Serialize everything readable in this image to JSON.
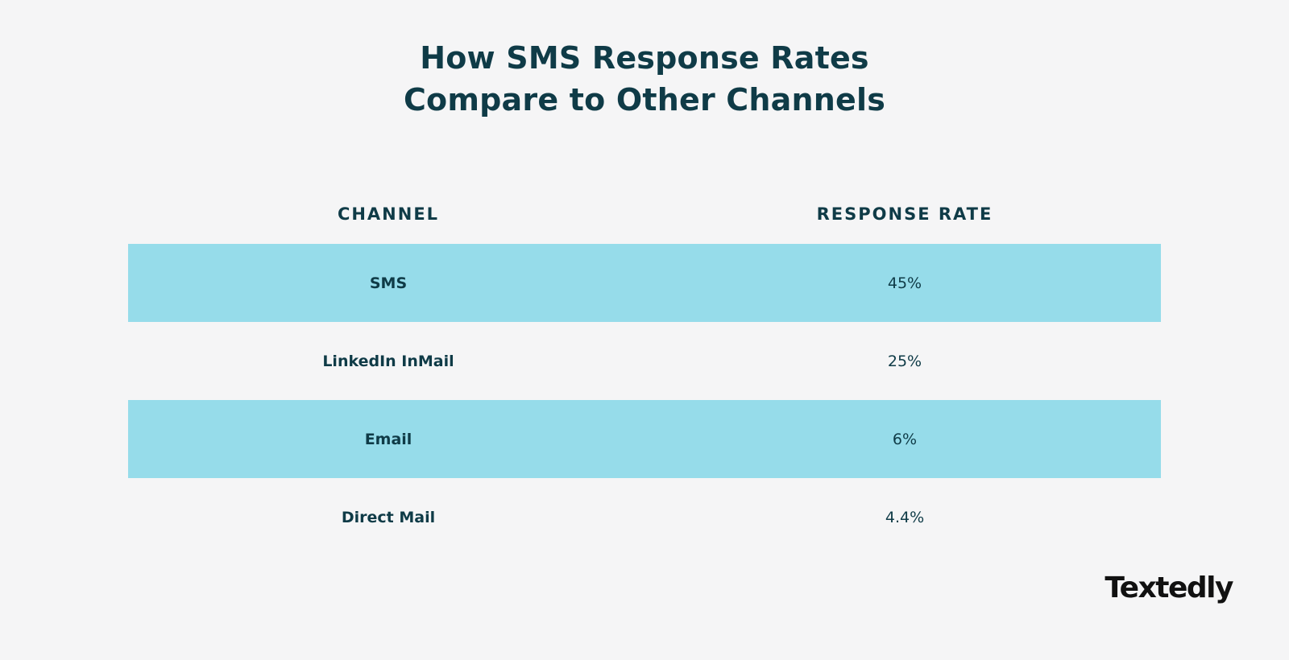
{
  "title": {
    "line1": "How SMS Response Rates",
    "line2": "Compare to Other Channels"
  },
  "logo": "Textedly",
  "colors": {
    "background": "#f5f5f6",
    "row_highlight": "#96dcea",
    "text": "#0f3b47"
  },
  "chart_data": {
    "type": "table",
    "title": "How SMS Response Rates Compare to Other Channels",
    "columns": [
      "CHANNEL",
      "RESPONSE RATE"
    ],
    "rows": [
      {
        "channel": "SMS",
        "rate": "45%",
        "value": 45
      },
      {
        "channel": "LinkedIn InMail",
        "rate": "25%",
        "value": 25
      },
      {
        "channel": "Email",
        "rate": "6%",
        "value": 6
      },
      {
        "channel": "Direct Mail",
        "rate": "4.4%",
        "value": 4.4
      }
    ]
  }
}
